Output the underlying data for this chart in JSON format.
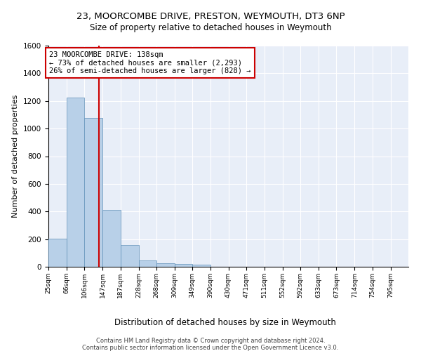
{
  "title1": "23, MOORCOMBE DRIVE, PRESTON, WEYMOUTH, DT3 6NP",
  "title2": "Size of property relative to detached houses in Weymouth",
  "xlabel": "Distribution of detached houses by size in Weymouth",
  "ylabel": "Number of detached properties",
  "footer1": "Contains HM Land Registry data © Crown copyright and database right 2024.",
  "footer2": "Contains public sector information licensed under the Open Government Licence v3.0.",
  "annotation_line1": "23 MOORCOMBE DRIVE: 138sqm",
  "annotation_line2": "← 73% of detached houses are smaller (2,293)",
  "annotation_line3": "26% of semi-detached houses are larger (828) →",
  "property_size": 138,
  "bin_edges": [
    25,
    66,
    106,
    147,
    187,
    228,
    268,
    309,
    349,
    390,
    430,
    471,
    511,
    552,
    592,
    633,
    673,
    714,
    754,
    795,
    835
  ],
  "bar_heights": [
    205,
    1225,
    1075,
    410,
    160,
    45,
    27,
    20,
    15,
    0,
    0,
    0,
    0,
    0,
    0,
    0,
    0,
    0,
    0,
    0
  ],
  "bar_color": "#b8d0e8",
  "bar_edge_color": "#6090b8",
  "vline_color": "#cc0000",
  "vline_x": 138,
  "annotation_box_color": "#cc0000",
  "background_color": "#e8eef8",
  "grid_color": "#ffffff",
  "ylim": [
    0,
    1600
  ],
  "yticks": [
    0,
    200,
    400,
    600,
    800,
    1000,
    1200,
    1400,
    1600
  ],
  "title1_fontsize": 9.5,
  "title2_fontsize": 8.5,
  "xlabel_fontsize": 8.5,
  "ylabel_fontsize": 8,
  "footer_fontsize": 6,
  "annot_fontsize": 7.5,
  "xtick_fontsize": 6.5,
  "ytick_fontsize": 7.5
}
